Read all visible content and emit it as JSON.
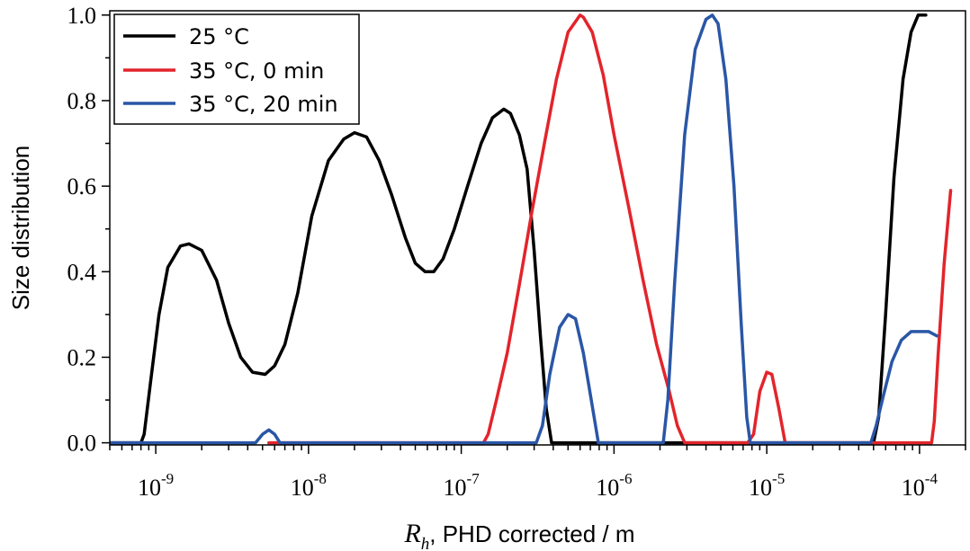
{
  "chart_data": {
    "type": "line",
    "title": "",
    "xlabel": {
      "symbol": "R",
      "subscript": "h",
      "rest": ", PHD corrected / m"
    },
    "ylabel": "Size distribution",
    "x_scale": "log",
    "xlim": [
      5e-10,
      0.0002
    ],
    "ylim": [
      -0.005,
      1.01
    ],
    "x_ticks": [
      {
        "value": 1e-09,
        "base": "10",
        "exp": "-9"
      },
      {
        "value": 1e-08,
        "base": "10",
        "exp": "-8"
      },
      {
        "value": 1e-07,
        "base": "10",
        "exp": "-7"
      },
      {
        "value": 1e-06,
        "base": "10",
        "exp": "-6"
      },
      {
        "value": 1e-05,
        "base": "10",
        "exp": "-5"
      },
      {
        "value": 0.0001,
        "base": "10",
        "exp": "-4"
      }
    ],
    "y_ticks": [
      {
        "value": 0.0,
        "label": "0.0"
      },
      {
        "value": 0.2,
        "label": "0.2"
      },
      {
        "value": 0.4,
        "label": "0.4"
      },
      {
        "value": 0.6,
        "label": "0.6"
      },
      {
        "value": 0.8,
        "label": "0.8"
      },
      {
        "value": 1.0,
        "label": "1.0"
      }
    ],
    "grid": false,
    "legend_position": "top-left",
    "series": [
      {
        "name": "25 °C",
        "color": "#000000",
        "points": [
          [
            5e-10,
            0
          ],
          [
            8e-10,
            0
          ],
          [
            8.4e-10,
            0.02
          ],
          [
            9.3e-10,
            0.15
          ],
          [
            1.05e-09,
            0.3
          ],
          [
            1.2e-09,
            0.41
          ],
          [
            1.45e-09,
            0.46
          ],
          [
            1.65e-09,
            0.465
          ],
          [
            2e-09,
            0.45
          ],
          [
            2.5e-09,
            0.38
          ],
          [
            3e-09,
            0.28
          ],
          [
            3.6e-09,
            0.2
          ],
          [
            4.3e-09,
            0.165
          ],
          [
            5.2e-09,
            0.16
          ],
          [
            6e-09,
            0.18
          ],
          [
            7e-09,
            0.23
          ],
          [
            8.5e-09,
            0.35
          ],
          [
            1.05e-08,
            0.53
          ],
          [
            1.35e-08,
            0.66
          ],
          [
            1.7e-08,
            0.71
          ],
          [
            2e-08,
            0.725
          ],
          [
            2.4e-08,
            0.715
          ],
          [
            2.9e-08,
            0.66
          ],
          [
            3.5e-08,
            0.58
          ],
          [
            4.3e-08,
            0.48
          ],
          [
            5e-08,
            0.42
          ],
          [
            5.8e-08,
            0.4
          ],
          [
            6.6e-08,
            0.4
          ],
          [
            7.6e-08,
            0.43
          ],
          [
            9e-08,
            0.5
          ],
          [
            1.1e-07,
            0.6
          ],
          [
            1.35e-07,
            0.7
          ],
          [
            1.6e-07,
            0.76
          ],
          [
            1.9e-07,
            0.78
          ],
          [
            2.1e-07,
            0.77
          ],
          [
            2.4e-07,
            0.72
          ],
          [
            2.7e-07,
            0.64
          ],
          [
            3e-07,
            0.45
          ],
          [
            3.3e-07,
            0.25
          ],
          [
            3.6e-07,
            0.08
          ],
          [
            3.9e-07,
            0
          ],
          [
            1e-06,
            0
          ],
          [
            2e-05,
            0
          ],
          [
            5e-05,
            0
          ],
          [
            5.4e-05,
            0.06
          ],
          [
            6e-05,
            0.3
          ],
          [
            6.8e-05,
            0.62
          ],
          [
            7.8e-05,
            0.85
          ],
          [
            8.8e-05,
            0.96
          ],
          [
            9.8e-05,
            1.0
          ],
          [
            0.00011,
            1.0
          ]
        ]
      },
      {
        "name": "35 °C, 0 min",
        "color": "#e3242b",
        "points": [
          [
            5.5e-09,
            0
          ],
          [
            6.5e-09,
            0
          ],
          [
            1.4e-07,
            0
          ],
          [
            1.5e-07,
            0.02
          ],
          [
            1.7e-07,
            0.1
          ],
          [
            2e-07,
            0.21
          ],
          [
            2.4e-07,
            0.37
          ],
          [
            2.9e-07,
            0.54
          ],
          [
            3.5e-07,
            0.7
          ],
          [
            4.2e-07,
            0.85
          ],
          [
            5e-07,
            0.96
          ],
          [
            6e-07,
            1.0
          ],
          [
            6.3e-07,
            0.995
          ],
          [
            7.2e-07,
            0.96
          ],
          [
            8.5e-07,
            0.86
          ],
          [
            1e-06,
            0.72
          ],
          [
            1.25e-06,
            0.55
          ],
          [
            1.55e-06,
            0.38
          ],
          [
            1.9e-06,
            0.23
          ],
          [
            2.3e-06,
            0.12
          ],
          [
            2.6e-06,
            0.04
          ],
          [
            2.9e-06,
            0
          ],
          [
            3e-06,
            0
          ],
          [
            7.5e-06,
            0
          ],
          [
            8.2e-06,
            0.02
          ],
          [
            9e-06,
            0.12
          ],
          [
            1e-05,
            0.165
          ],
          [
            1.08e-05,
            0.16
          ],
          [
            1.2e-05,
            0.08
          ],
          [
            1.32e-05,
            0
          ],
          [
            8e-05,
            0
          ],
          [
            0.00012,
            0
          ],
          [
            0.000125,
            0.05
          ],
          [
            0.000132,
            0.2
          ],
          [
            0.000145,
            0.42
          ],
          [
            0.00016,
            0.59
          ]
        ]
      },
      {
        "name": "35 °C, 20 min",
        "color": "#2a56a6",
        "points": [
          [
            5e-10,
            0
          ],
          [
            4.5e-09,
            0
          ],
          [
            5e-09,
            0.02
          ],
          [
            5.5e-09,
            0.03
          ],
          [
            6e-09,
            0.02
          ],
          [
            6.5e-09,
            0
          ],
          [
            3.1e-07,
            0
          ],
          [
            3.4e-07,
            0.04
          ],
          [
            3.8e-07,
            0.16
          ],
          [
            4.4e-07,
            0.27
          ],
          [
            5e-07,
            0.3
          ],
          [
            5.6e-07,
            0.29
          ],
          [
            6.3e-07,
            0.21
          ],
          [
            7.1e-07,
            0.1
          ],
          [
            7.9e-07,
            0
          ],
          [
            2.1e-06,
            0
          ],
          [
            2.25e-06,
            0.1
          ],
          [
            2.5e-06,
            0.38
          ],
          [
            2.9e-06,
            0.72
          ],
          [
            3.4e-06,
            0.92
          ],
          [
            4e-06,
            0.99
          ],
          [
            4.4e-06,
            1.0
          ],
          [
            4.8e-06,
            0.98
          ],
          [
            5.4e-06,
            0.85
          ],
          [
            6.1e-06,
            0.6
          ],
          [
            6.8e-06,
            0.28
          ],
          [
            7.4e-06,
            0.06
          ],
          [
            7.8e-06,
            0
          ],
          [
            4.8e-05,
            0
          ],
          [
            5.2e-05,
            0.04
          ],
          [
            5.8e-05,
            0.11
          ],
          [
            6.6e-05,
            0.19
          ],
          [
            7.6e-05,
            0.24
          ],
          [
            8.8e-05,
            0.26
          ],
          [
            0.0001,
            0.26
          ],
          [
            0.000115,
            0.26
          ],
          [
            0.00013,
            0.25
          ]
        ]
      }
    ]
  }
}
